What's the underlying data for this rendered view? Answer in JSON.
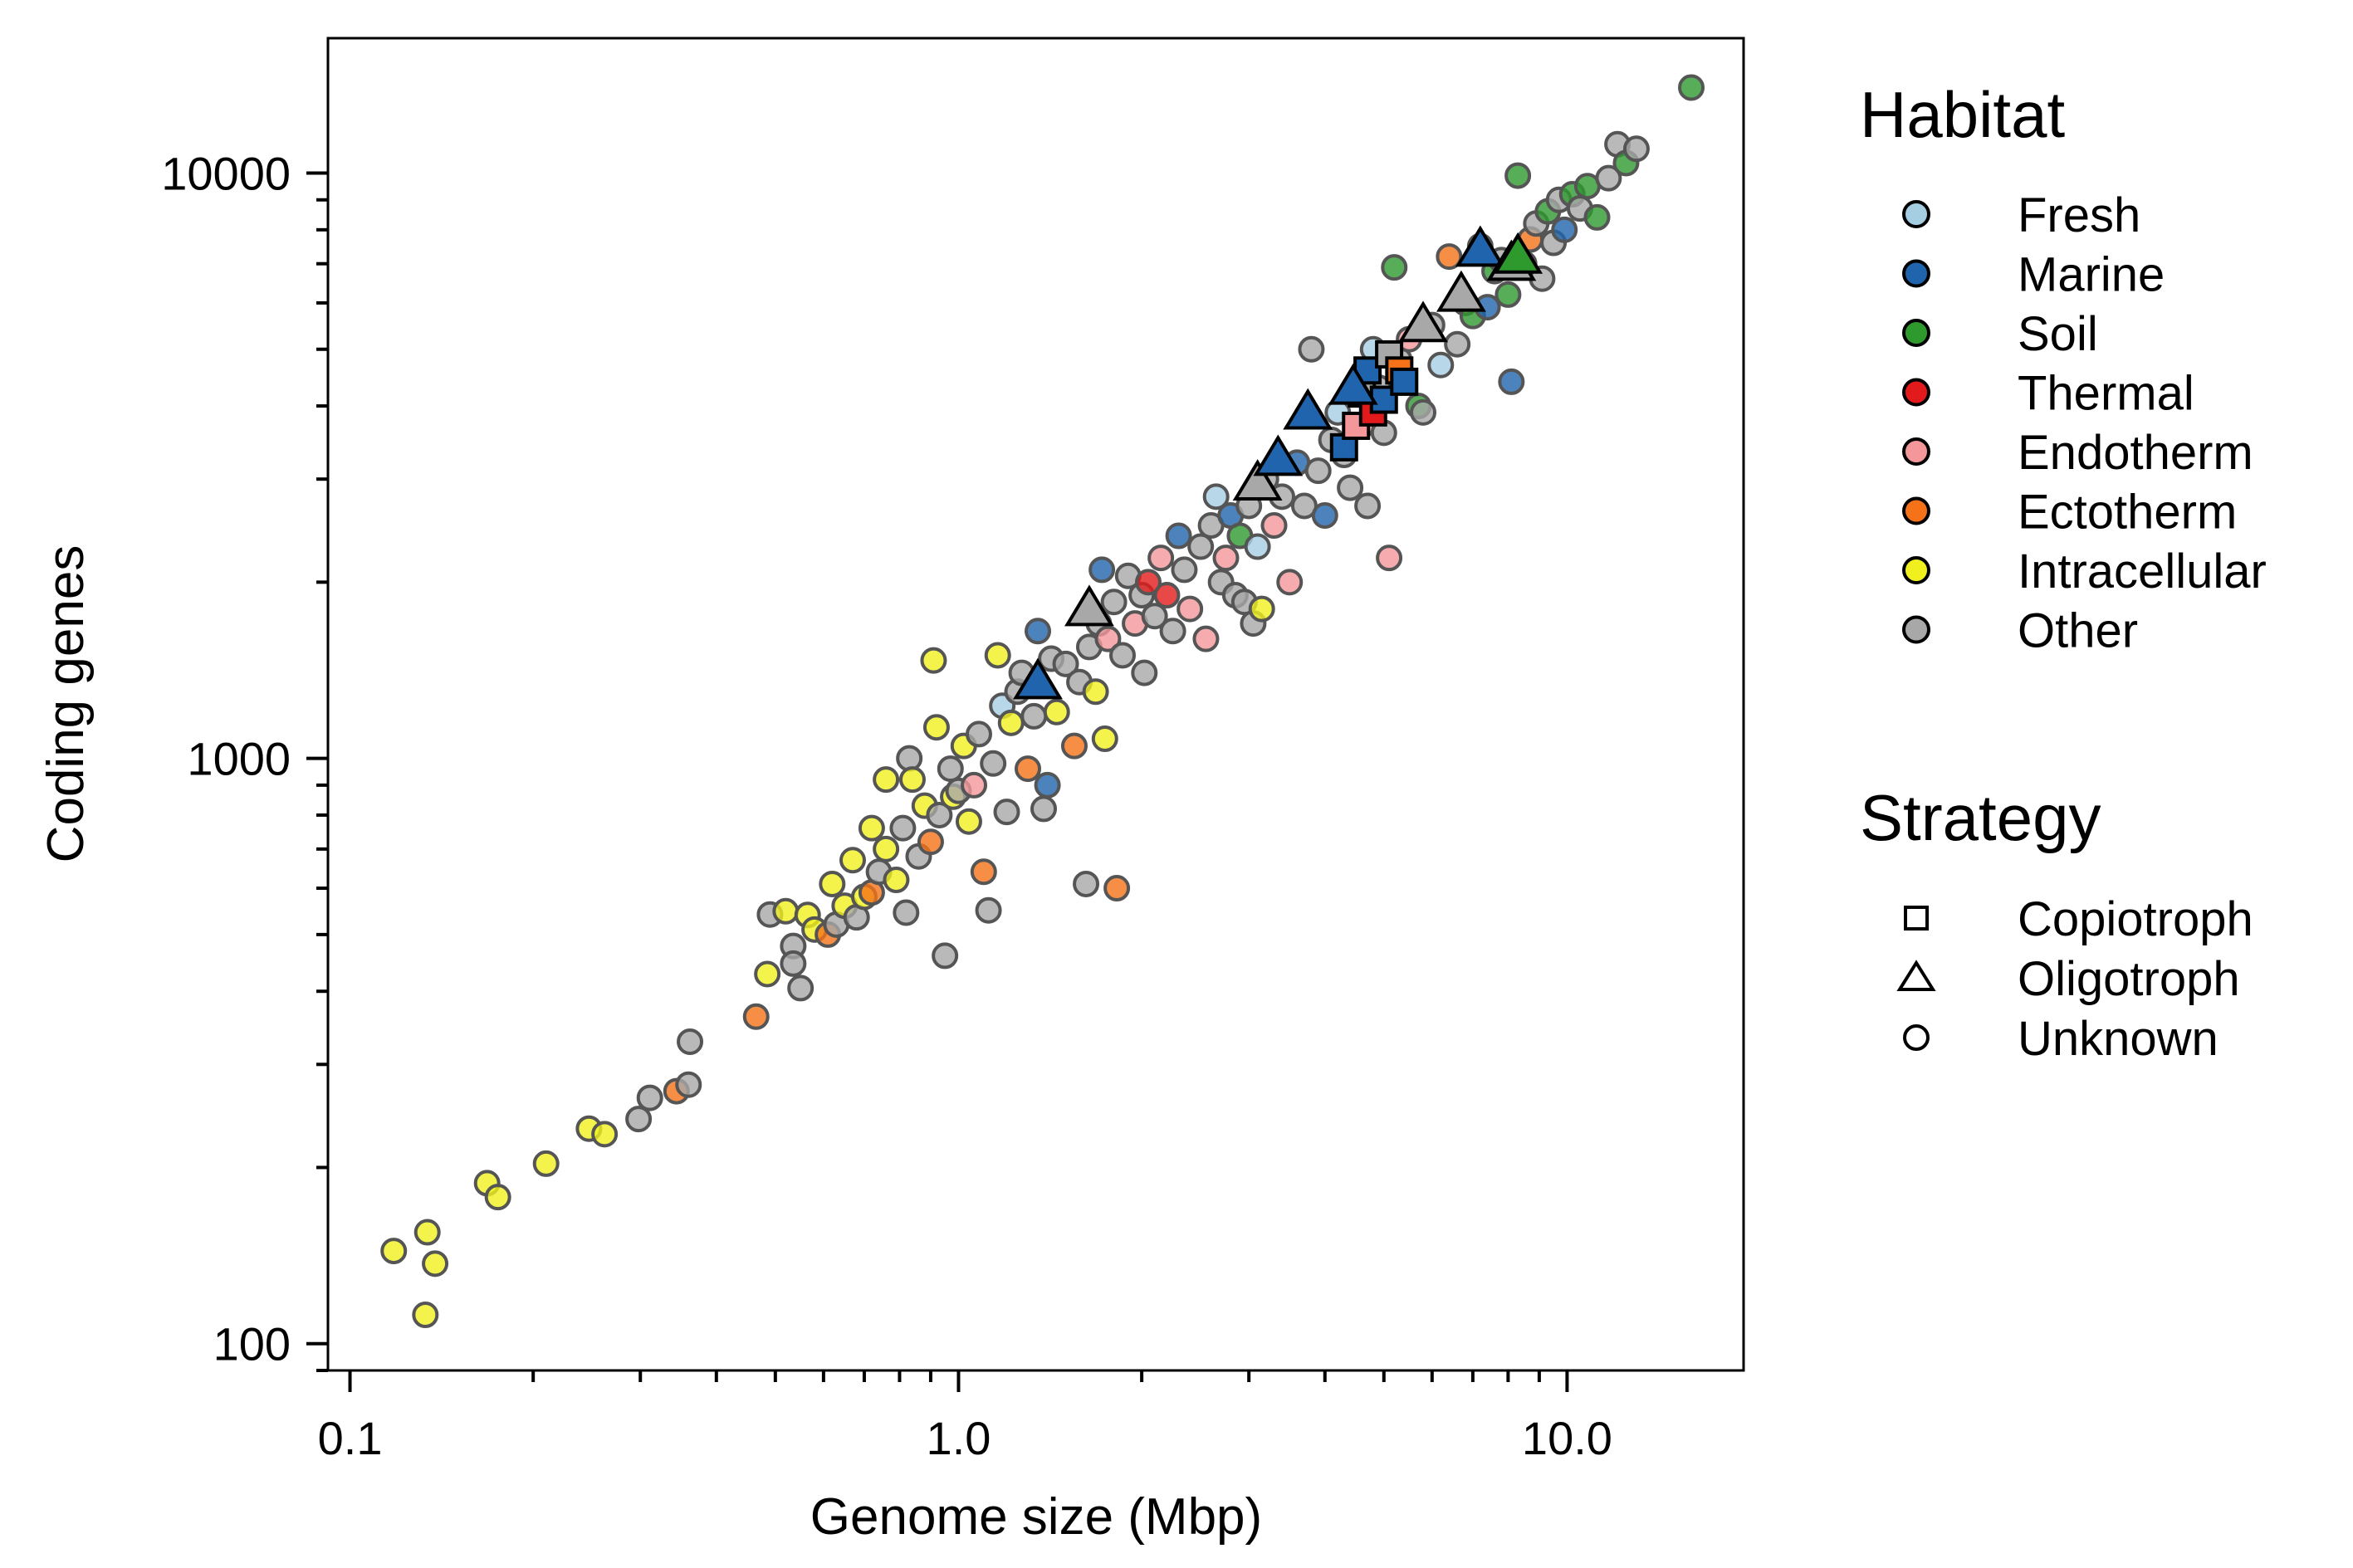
{
  "chart_data": {
    "type": "scatter",
    "xlabel": "Genome size (Mbp)",
    "ylabel": "Coding genes",
    "x_scale": "log",
    "y_scale": "log",
    "xlim": [
      0.092,
      19.5
    ],
    "ylim": [
      90,
      17000
    ],
    "x_ticks": [
      0.1,
      1.0,
      10.0
    ],
    "x_tick_labels": [
      "0.1",
      "1.0",
      "10.0"
    ],
    "y_ticks": [
      100,
      1000,
      10000
    ],
    "y_tick_labels": [
      "100",
      "1000",
      "10000"
    ],
    "grid": false,
    "legend": {
      "habitat": {
        "title": "Habitat",
        "entries": [
          {
            "label": "Fresh",
            "color": "#a6cee3"
          },
          {
            "label": "Marine",
            "color": "#1f64ad"
          },
          {
            "label": "Soil",
            "color": "#2e9a2e"
          },
          {
            "label": "Thermal",
            "color": "#e31a1c"
          },
          {
            "label": "Endotherm",
            "color": "#f4979a"
          },
          {
            "label": "Ectotherm",
            "color": "#f57218"
          },
          {
            "label": "Intracellular",
            "color": "#f0f01e"
          },
          {
            "label": "Other",
            "color": "#a8a8a8"
          }
        ]
      },
      "strategy": {
        "title": "Strategy",
        "entries": [
          {
            "label": "Copiotroph",
            "marker": "square"
          },
          {
            "label": "Oligotroph",
            "marker": "triangle"
          },
          {
            "label": "Unknown",
            "marker": "circle"
          }
        ]
      }
    },
    "points_unknown": [
      [
        0.118,
        144,
        "Intracellular"
      ],
      [
        0.133,
        112,
        "Intracellular"
      ],
      [
        0.134,
        155,
        "Intracellular"
      ],
      [
        0.138,
        137,
        "Intracellular"
      ],
      [
        0.168,
        188,
        "Intracellular"
      ],
      [
        0.175,
        178,
        "Intracellular"
      ],
      [
        0.21,
        203,
        "Intracellular"
      ],
      [
        0.247,
        233,
        "Intracellular"
      ],
      [
        0.262,
        228,
        "Intracellular"
      ],
      [
        0.298,
        242,
        "Other"
      ],
      [
        0.311,
        263,
        "Other"
      ],
      [
        0.344,
        270,
        "Ectotherm"
      ],
      [
        0.36,
        277,
        "Other"
      ],
      [
        0.362,
        328,
        "Other"
      ],
      [
        0.465,
        362,
        "Ectotherm"
      ],
      [
        0.485,
        428,
        "Intracellular"
      ],
      [
        0.49,
        541,
        "Other"
      ],
      [
        0.52,
        548,
        "Intracellular"
      ],
      [
        0.535,
        478,
        "Other"
      ],
      [
        0.535,
        446,
        "Other"
      ],
      [
        0.55,
        405,
        "Other"
      ],
      [
        0.565,
        540,
        "Intracellular"
      ],
      [
        0.58,
        510,
        "Intracellular"
      ],
      [
        0.61,
        500,
        "Ectotherm"
      ],
      [
        0.62,
        610,
        "Intracellular"
      ],
      [
        0.63,
        520,
        "Other"
      ],
      [
        0.65,
        560,
        "Intracellular"
      ],
      [
        0.67,
        670,
        "Intracellular"
      ],
      [
        0.68,
        535,
        "Other"
      ],
      [
        0.7,
        580,
        "Intracellular"
      ],
      [
        0.72,
        760,
        "Intracellular"
      ],
      [
        0.72,
        590,
        "Ectotherm"
      ],
      [
        0.74,
        640,
        "Other"
      ],
      [
        0.76,
        700,
        "Intracellular"
      ],
      [
        0.76,
        920,
        "Intracellular"
      ],
      [
        0.79,
        620,
        "Intracellular"
      ],
      [
        0.81,
        760,
        "Other"
      ],
      [
        0.82,
        545,
        "Other"
      ],
      [
        0.83,
        1000,
        "Other"
      ],
      [
        0.84,
        920,
        "Intracellular"
      ],
      [
        0.86,
        680,
        "Other"
      ],
      [
        0.88,
        830,
        "Intracellular"
      ],
      [
        0.9,
        720,
        "Ectotherm"
      ],
      [
        0.91,
        1470,
        "Intracellular"
      ],
      [
        0.92,
        1130,
        "Intracellular"
      ],
      [
        0.93,
        800,
        "Other"
      ],
      [
        0.95,
        460,
        "Other"
      ],
      [
        0.97,
        960,
        "Other"
      ],
      [
        0.98,
        860,
        "Intracellular"
      ],
      [
        1.0,
        880,
        "Other"
      ],
      [
        1.02,
        1050,
        "Intracellular"
      ],
      [
        1.04,
        780,
        "Intracellular"
      ],
      [
        1.06,
        900,
        "Endotherm"
      ],
      [
        1.08,
        1100,
        "Other"
      ],
      [
        1.1,
        640,
        "Ectotherm"
      ],
      [
        1.12,
        550,
        "Other"
      ],
      [
        1.14,
        980,
        "Other"
      ],
      [
        1.16,
        1500,
        "Intracellular"
      ],
      [
        1.18,
        1230,
        "Fresh"
      ],
      [
        1.2,
        810,
        "Other"
      ],
      [
        1.22,
        1150,
        "Intracellular"
      ],
      [
        1.25,
        1300,
        "Other"
      ],
      [
        1.27,
        1400,
        "Other"
      ],
      [
        1.3,
        960,
        "Ectotherm"
      ],
      [
        1.33,
        1180,
        "Other"
      ],
      [
        1.35,
        1650,
        "Marine"
      ],
      [
        1.38,
        820,
        "Other"
      ],
      [
        1.4,
        900,
        "Marine"
      ],
      [
        1.42,
        1480,
        "Other"
      ],
      [
        1.45,
        1200,
        "Intracellular"
      ],
      [
        1.5,
        1450,
        "Other"
      ],
      [
        1.55,
        1050,
        "Ectotherm"
      ],
      [
        1.58,
        1350,
        "Other"
      ],
      [
        1.62,
        610,
        "Other"
      ],
      [
        1.64,
        1550,
        "Other"
      ],
      [
        1.68,
        1300,
        "Intracellular"
      ],
      [
        1.7,
        1700,
        "Other"
      ],
      [
        1.72,
        2100,
        "Marine"
      ],
      [
        1.74,
        1080,
        "Intracellular"
      ],
      [
        1.76,
        1600,
        "Endotherm"
      ],
      [
        1.8,
        1850,
        "Other"
      ],
      [
        1.82,
        600,
        "Ectotherm"
      ],
      [
        1.86,
        1500,
        "Other"
      ],
      [
        1.9,
        2050,
        "Other"
      ],
      [
        1.95,
        1700,
        "Endotherm"
      ],
      [
        2.0,
        1900,
        "Other"
      ],
      [
        2.02,
        1400,
        "Other"
      ],
      [
        2.05,
        2000,
        "Thermal"
      ],
      [
        2.1,
        1750,
        "Other"
      ],
      [
        2.15,
        2200,
        "Endotherm"
      ],
      [
        2.2,
        1900,
        "Thermal"
      ],
      [
        2.25,
        1650,
        "Other"
      ],
      [
        2.3,
        2400,
        "Marine"
      ],
      [
        2.35,
        2100,
        "Other"
      ],
      [
        2.4,
        1800,
        "Endotherm"
      ],
      [
        2.5,
        2300,
        "Other"
      ],
      [
        2.55,
        1600,
        "Endotherm"
      ],
      [
        2.6,
        2500,
        "Other"
      ],
      [
        2.65,
        2800,
        "Fresh"
      ],
      [
        2.7,
        2000,
        "Other"
      ],
      [
        2.75,
        2200,
        "Endotherm"
      ],
      [
        2.8,
        2600,
        "Marine"
      ],
      [
        2.85,
        1900,
        "Other"
      ],
      [
        2.9,
        2400,
        "Soil"
      ],
      [
        2.95,
        1850,
        "Other"
      ],
      [
        3.0,
        2700,
        "Other"
      ],
      [
        3.05,
        1700,
        "Other"
      ],
      [
        3.1,
        2300,
        "Fresh"
      ],
      [
        3.15,
        1800,
        "Intracellular"
      ],
      [
        3.2,
        3000,
        "Other"
      ],
      [
        3.3,
        2500,
        "Endotherm"
      ],
      [
        3.4,
        2800,
        "Other"
      ],
      [
        3.5,
        2000,
        "Endotherm"
      ],
      [
        3.6,
        3200,
        "Marine"
      ],
      [
        3.7,
        2700,
        "Other"
      ],
      [
        3.8,
        5000,
        "Other"
      ],
      [
        3.9,
        3100,
        "Other"
      ],
      [
        4.0,
        2600,
        "Marine"
      ],
      [
        4.1,
        3500,
        "Other"
      ],
      [
        4.2,
        3900,
        "Fresh"
      ],
      [
        4.3,
        3300,
        "Other"
      ],
      [
        4.4,
        2900,
        "Other"
      ],
      [
        4.5,
        4200,
        "Other"
      ],
      [
        4.6,
        3700,
        "Endotherm"
      ],
      [
        4.7,
        2700,
        "Other"
      ],
      [
        4.8,
        5000,
        "Fresh"
      ],
      [
        4.9,
        4300,
        "Other"
      ],
      [
        5.0,
        3600,
        "Other"
      ],
      [
        5.1,
        2200,
        "Endotherm"
      ],
      [
        5.2,
        6900,
        "Soil"
      ],
      [
        5.3,
        4800,
        "Other"
      ],
      [
        5.5,
        5200,
        "Endotherm"
      ],
      [
        5.7,
        4000,
        "Soil"
      ],
      [
        5.8,
        3900,
        "Other"
      ],
      [
        6.0,
        5500,
        "Other"
      ],
      [
        6.2,
        4700,
        "Fresh"
      ],
      [
        6.4,
        7200,
        "Ectotherm"
      ],
      [
        6.6,
        5100,
        "Other"
      ],
      [
        6.8,
        6000,
        "Endotherm"
      ],
      [
        7.0,
        5700,
        "Soil"
      ],
      [
        7.2,
        7500,
        "Other"
      ],
      [
        7.4,
        5900,
        "Marine"
      ],
      [
        7.6,
        6800,
        "Soil"
      ],
      [
        7.8,
        7100,
        "Other"
      ],
      [
        8.0,
        6200,
        "Soil"
      ],
      [
        8.1,
        4400,
        "Marine"
      ],
      [
        8.3,
        9900,
        "Soil"
      ],
      [
        8.5,
        7000,
        "Other"
      ],
      [
        8.7,
        7700,
        "Ectotherm"
      ],
      [
        8.9,
        8200,
        "Other"
      ],
      [
        9.1,
        6600,
        "Other"
      ],
      [
        9.3,
        8600,
        "Soil"
      ],
      [
        9.5,
        7600,
        "Other"
      ],
      [
        9.7,
        9000,
        "Other"
      ],
      [
        9.9,
        8000,
        "Marine"
      ],
      [
        10.2,
        9200,
        "Soil"
      ],
      [
        10.5,
        8700,
        "Other"
      ],
      [
        10.8,
        9500,
        "Soil"
      ],
      [
        11.2,
        8400,
        "Soil"
      ],
      [
        11.7,
        9800,
        "Other"
      ],
      [
        12.1,
        11200,
        "Other"
      ],
      [
        12.5,
        10400,
        "Soil"
      ],
      [
        13.0,
        11000,
        "Other"
      ],
      [
        16.0,
        14000,
        "Soil"
      ]
    ],
    "points_copiotroph": [
      [
        4.3,
        3400,
        "Marine"
      ],
      [
        4.5,
        3700,
        "Endotherm"
      ],
      [
        4.6,
        4200,
        "Other"
      ],
      [
        4.7,
        4600,
        "Marine"
      ],
      [
        4.8,
        3900,
        "Thermal"
      ],
      [
        5.0,
        4100,
        "Marine"
      ],
      [
        5.1,
        4900,
        "Other"
      ],
      [
        5.3,
        4600,
        "Ectotherm"
      ],
      [
        5.4,
        4400,
        "Marine"
      ]
    ],
    "points_oligotroph": [
      [
        1.35,
        1350,
        "Marine"
      ],
      [
        1.64,
        1800,
        "Other"
      ],
      [
        3.1,
        2950,
        "Other"
      ],
      [
        3.35,
        3250,
        "Marine"
      ],
      [
        3.75,
        3900,
        "Marine"
      ],
      [
        4.45,
        4300,
        "Marine"
      ],
      [
        5.8,
        5500,
        "Other"
      ],
      [
        6.7,
        6200,
        "Other"
      ],
      [
        7.2,
        7400,
        "Marine"
      ],
      [
        8.1,
        7000,
        "Other"
      ],
      [
        8.3,
        7200,
        "Soil"
      ]
    ]
  }
}
